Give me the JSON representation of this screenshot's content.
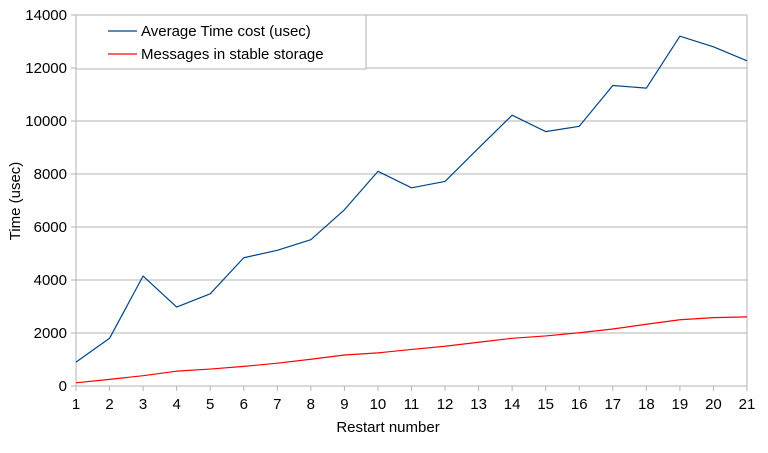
{
  "chart_data": {
    "type": "line",
    "title": "",
    "xlabel": "Restart number",
    "ylabel": "Time (usec)",
    "x": [
      1,
      2,
      3,
      4,
      5,
      6,
      7,
      8,
      9,
      10,
      11,
      12,
      13,
      14,
      15,
      16,
      17,
      18,
      19,
      20,
      21
    ],
    "xlim": [
      1,
      21
    ],
    "ylim": [
      0,
      14000
    ],
    "yticks": [
      0,
      2000,
      4000,
      6000,
      8000,
      10000,
      12000,
      14000
    ],
    "grid": "horizontal",
    "legend_position": "top-left",
    "series": [
      {
        "name": "Average Time cost (usec)",
        "color": "#004586",
        "values": [
          900,
          1800,
          4150,
          2980,
          3480,
          4840,
          5120,
          5520,
          6650,
          8100,
          7480,
          7720,
          8980,
          10220,
          9600,
          9800,
          11340,
          11240,
          13200,
          12800,
          12270
        ]
      },
      {
        "name": "Messages in stable storage",
        "color": "#ff0000",
        "values": [
          120,
          250,
          390,
          560,
          640,
          740,
          860,
          1010,
          1170,
          1250,
          1380,
          1500,
          1650,
          1800,
          1890,
          2010,
          2150,
          2330,
          2500,
          2580,
          2610
        ]
      }
    ]
  }
}
